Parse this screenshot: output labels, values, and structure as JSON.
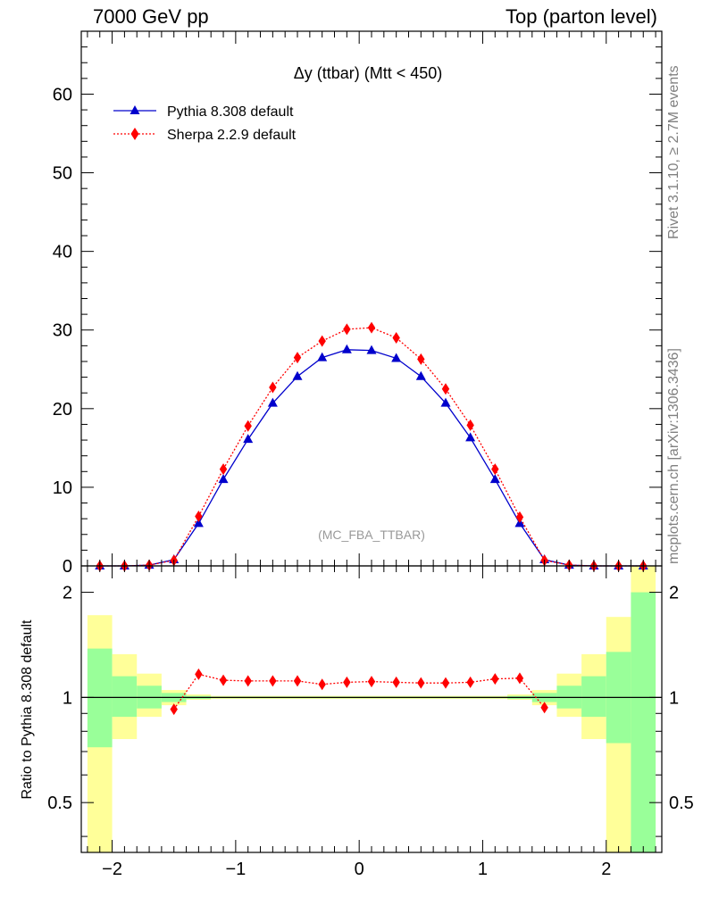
{
  "header": {
    "left": "7000 GeV pp",
    "right": "Top (parton level)"
  },
  "side_labels": {
    "rivet": "Rivet 3.1.10, ≥ 2.7M events",
    "mcplots": "mcplots.cern.ch [arXiv:1306.3436]"
  },
  "chart_data": [
    {
      "type": "line",
      "title": "Δy (ttbar) (Mtt < 450)",
      "analysis_tag": "(MC_FBA_TTBAR)",
      "ylim": [
        0,
        68
      ],
      "xlim": [
        -2.25,
        2.45
      ],
      "y_ticks": [
        "0",
        "10",
        "20",
        "30",
        "40",
        "50",
        "60"
      ],
      "legend_position": "top-left",
      "x": [
        -2.1,
        -1.9,
        -1.7,
        -1.5,
        -1.3,
        -1.1,
        -0.9,
        -0.7,
        -0.5,
        -0.3,
        -0.1,
        0.1,
        0.3,
        0.5,
        0.7,
        0.9,
        1.1,
        1.3,
        1.5,
        1.7,
        1.9,
        2.1,
        2.3
      ],
      "series": [
        {
          "name": "Pythia 8.308 default",
          "color": "#0000cc",
          "marker": "triangle",
          "line": "solid",
          "values": [
            0.0,
            0.0,
            0.1,
            0.8,
            5.4,
            11.0,
            16.1,
            20.7,
            24.1,
            26.5,
            27.5,
            27.4,
            26.4,
            24.1,
            20.7,
            16.3,
            11.0,
            5.4,
            0.8,
            0.1,
            0.0,
            0.0,
            0.0
          ]
        },
        {
          "name": "Sherpa 2.2.9 default",
          "color": "#ff0000",
          "marker": "diamond",
          "line": "dotted",
          "values": [
            0.0,
            0.0,
            0.1,
            0.7,
            6.3,
            12.3,
            17.8,
            22.7,
            26.5,
            28.6,
            30.1,
            30.3,
            29.0,
            26.3,
            22.5,
            17.9,
            12.3,
            6.2,
            0.7,
            0.1,
            0.0,
            0.0,
            0.0
          ]
        }
      ]
    },
    {
      "type": "line",
      "ylabel": "Ratio to Pythia 8.308 default",
      "ylim": [
        0.36,
        2.38
      ],
      "y_scale": "log",
      "y_ticks": [
        "0.5",
        "1",
        "2"
      ],
      "x_ticks": [
        "−2",
        "−1",
        "0",
        "1",
        "2"
      ],
      "x_tick_values": [
        -2,
        -1,
        0,
        1,
        2
      ],
      "bin_edges": [
        -2.2,
        -2.0,
        -1.8,
        -1.6,
        -1.4,
        -1.2,
        1.2,
        1.4,
        1.6,
        1.8,
        2.0,
        2.2,
        2.4
      ],
      "band_inner_color": "#99ff99",
      "band_outer_color": "#ffff99",
      "band_inner": [
        [
          0.72,
          1.38
        ],
        [
          0.88,
          1.15
        ],
        [
          0.93,
          1.08
        ],
        [
          0.97,
          1.03
        ],
        [
          0.99,
          1.01
        ],
        [
          0.995,
          1.005
        ],
        [
          0.99,
          1.01
        ],
        [
          0.97,
          1.03
        ],
        [
          0.93,
          1.08
        ],
        [
          0.88,
          1.15
        ],
        [
          0.74,
          1.35
        ],
        [
          0.36,
          2.0
        ]
      ],
      "band_outer": [
        [
          0.36,
          1.72
        ],
        [
          0.76,
          1.33
        ],
        [
          0.88,
          1.17
        ],
        [
          0.95,
          1.05
        ],
        [
          0.985,
          1.02
        ],
        [
          0.99,
          1.01
        ],
        [
          0.985,
          1.02
        ],
        [
          0.95,
          1.05
        ],
        [
          0.88,
          1.17
        ],
        [
          0.76,
          1.33
        ],
        [
          0.36,
          1.7
        ],
        [
          0.36,
          2.38
        ]
      ],
      "reference_value": 1,
      "ratio": {
        "name": "Sherpa 2.2.9 default",
        "color": "#ff0000",
        "x": [
          -1.5,
          -1.3,
          -1.1,
          -0.9,
          -0.7,
          -0.5,
          -0.3,
          -0.1,
          0.1,
          0.3,
          0.5,
          0.7,
          0.9,
          1.1,
          1.3,
          1.5
        ],
        "values": [
          0.925,
          1.165,
          1.12,
          1.115,
          1.115,
          1.115,
          1.09,
          1.105,
          1.11,
          1.105,
          1.1,
          1.1,
          1.105,
          1.13,
          1.135,
          0.935
        ]
      }
    }
  ]
}
